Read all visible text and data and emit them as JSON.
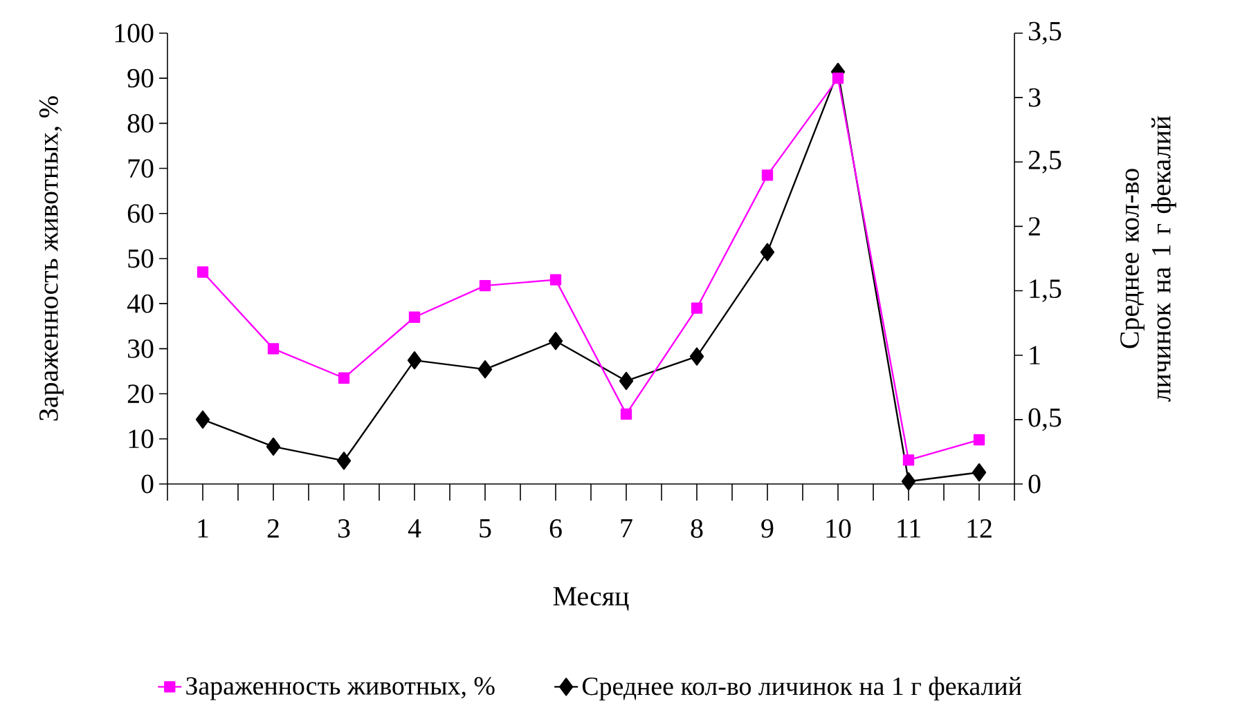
{
  "chart_data": {
    "type": "line",
    "xlabel": "Месяц",
    "ylabel": "Зараженность животных, %",
    "y2label": "Среднее кол-во личинок на 1 г фекалий",
    "categories": [
      "1",
      "2",
      "3",
      "4",
      "5",
      "6",
      "7",
      "8",
      "9",
      "10",
      "11",
      "12"
    ],
    "series": [
      {
        "name": "Зараженность животных, %",
        "color": "#ff00ff",
        "marker": "square",
        "axis": "y",
        "values": [
          47,
          30,
          23.5,
          37,
          44,
          45.3,
          15.5,
          39,
          68.5,
          90,
          5.3,
          9.8
        ]
      },
      {
        "name": "Среднее кол-во личинок на 1 г фекалий",
        "color": "#000000",
        "marker": "diamond",
        "axis": "y2",
        "values": [
          0.5,
          0.29,
          0.18,
          0.96,
          0.89,
          1.11,
          0.8,
          0.99,
          1.8,
          3.2,
          0.02,
          0.09
        ]
      }
    ],
    "ylim": [
      0,
      100
    ],
    "yticks": [
      0,
      10,
      20,
      30,
      40,
      50,
      60,
      70,
      80,
      90,
      100
    ],
    "y2lim": [
      0,
      3.5
    ],
    "y2ticks": [
      0,
      {
        "value": 0.5,
        "label": "0,5"
      },
      1,
      {
        "value": 1.5,
        "label": "1,5"
      },
      2,
      {
        "value": 2.5,
        "label": "2,5"
      },
      3,
      {
        "value": 3.5,
        "label": "3,5"
      }
    ],
    "legend": "bottom",
    "line_style": "solid"
  }
}
